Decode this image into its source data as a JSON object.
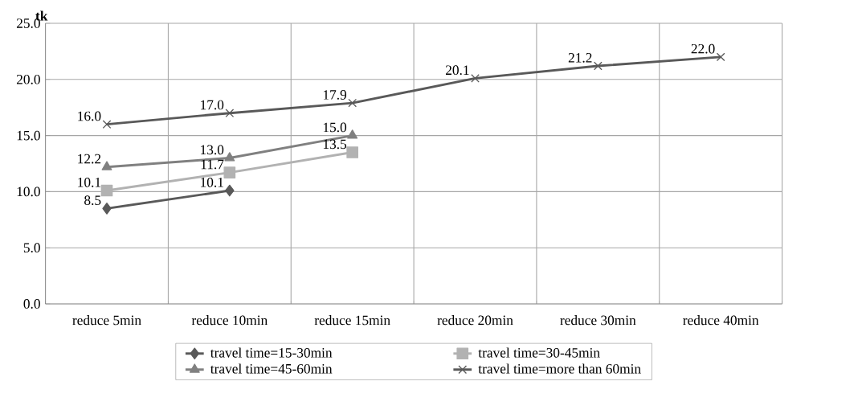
{
  "chart_data": {
    "type": "line",
    "ylabel": "tk",
    "categories": [
      "reduce 5min",
      "reduce 10min",
      "reduce 15min",
      "reduce 20min",
      "reduce 30min",
      "reduce 40min"
    ],
    "series": [
      {
        "name": "travel time=15-30min",
        "color": "#595959",
        "marker": "diamond",
        "values": [
          8.5,
          10.1,
          null,
          null,
          null,
          null
        ],
        "value_labels": [
          "8.5",
          "10.1",
          null,
          null,
          null,
          null
        ]
      },
      {
        "name": "travel time=30-45min",
        "color": "#b2b2b2",
        "marker": "square",
        "values": [
          10.1,
          11.7,
          13.5,
          null,
          null,
          null
        ],
        "value_labels": [
          "10.1",
          "11.7",
          "13.5",
          null,
          null,
          null
        ]
      },
      {
        "name": "travel time=45-60min",
        "color": "#808080",
        "marker": "triangle",
        "values": [
          12.2,
          13.0,
          15.0,
          null,
          null,
          null
        ],
        "value_labels": [
          "12.2",
          "13.0",
          "15.0",
          null,
          null,
          null
        ]
      },
      {
        "name": "travel time=more than 60min",
        "color": "#595959",
        "marker": "cross",
        "values": [
          16.0,
          17.0,
          17.9,
          20.1,
          21.2,
          22.0
        ],
        "value_labels": [
          "16.0",
          "17.0",
          "17.9",
          "20.1",
          "21.2",
          "22.0"
        ]
      }
    ],
    "ylim": [
      0,
      25
    ],
    "yticks": [
      {
        "value": 0,
        "label": "0.0"
      },
      {
        "value": 5,
        "label": "5.0"
      },
      {
        "value": 10,
        "label": "10.0"
      },
      {
        "value": 15,
        "label": "15.0"
      },
      {
        "value": 20,
        "label": "20.0"
      },
      {
        "value": 25,
        "label": "25.0"
      }
    ],
    "grid": true,
    "legend": "bottom",
    "line_style": "solid"
  }
}
